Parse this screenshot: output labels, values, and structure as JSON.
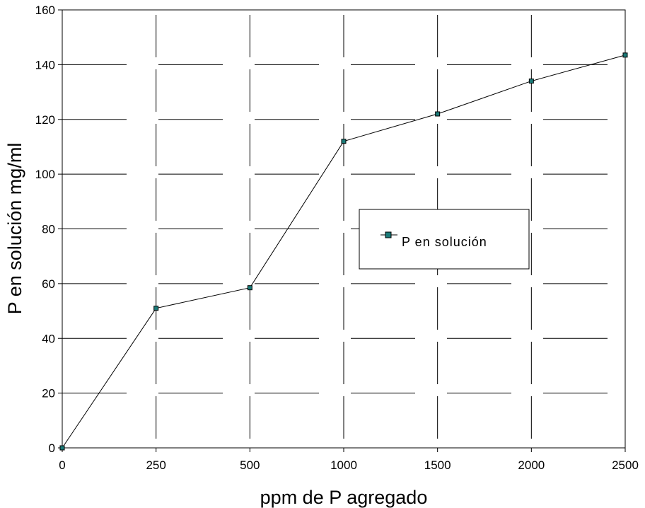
{
  "chart_data": {
    "type": "line",
    "categories": [
      "0",
      "250",
      "500",
      "1000",
      "1500",
      "2000",
      "2500"
    ],
    "series": [
      {
        "name": "P en solución",
        "values": [
          0,
          51,
          58.5,
          112,
          122,
          134,
          143.5
        ],
        "color": "#1a7a78"
      }
    ],
    "xlabel": "ppm de P agregado",
    "ylabel": "P en solución mg/ml",
    "ylim": [
      0,
      160
    ],
    "yticks": [
      "0",
      "20",
      "40",
      "60",
      "80",
      "100",
      "120",
      "140",
      "160"
    ],
    "grid": true,
    "legend_position": "center-right"
  }
}
